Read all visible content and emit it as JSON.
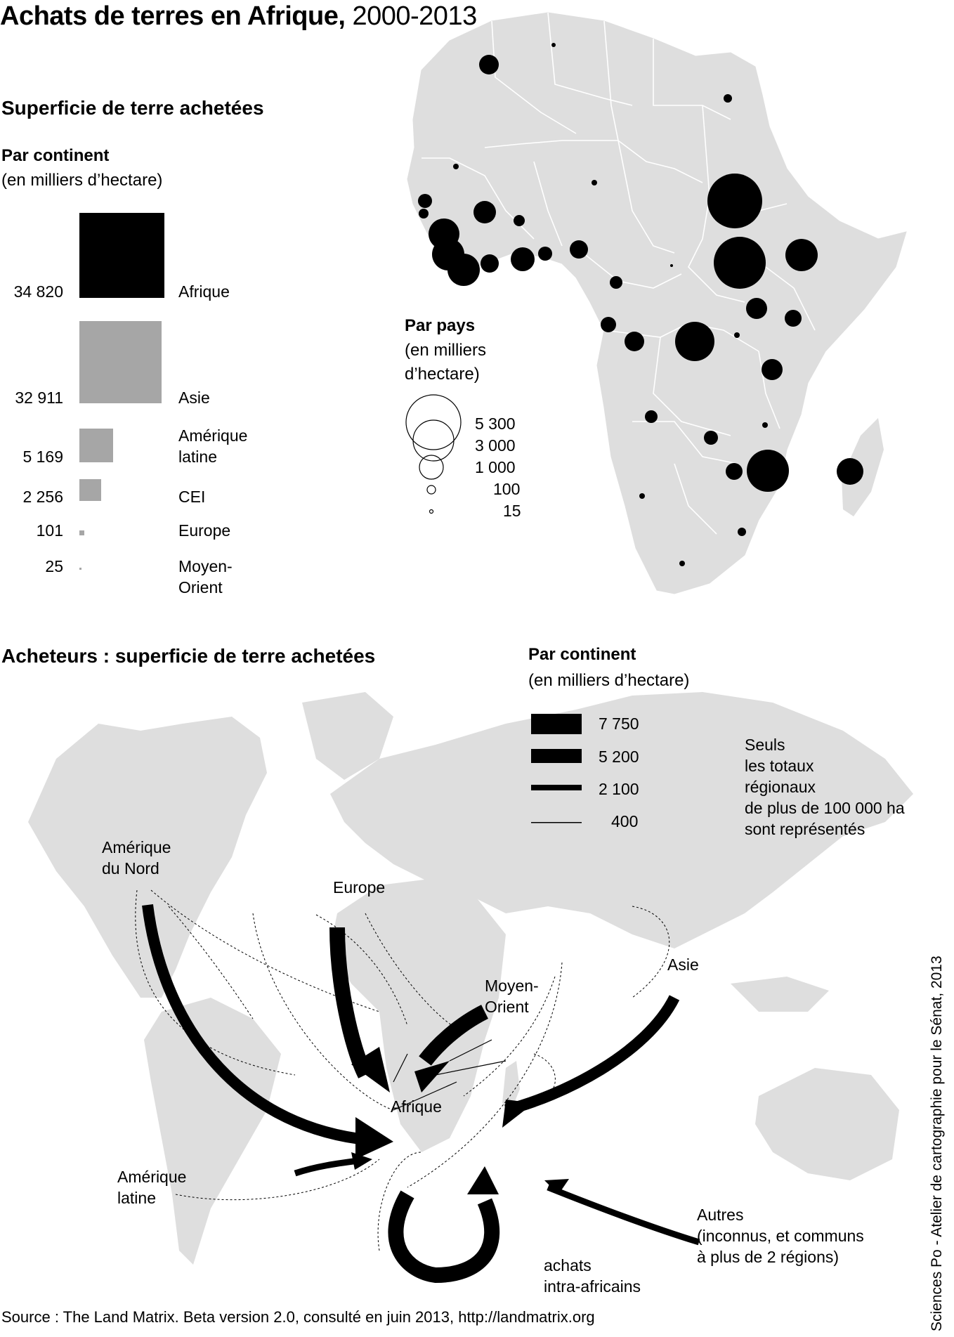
{
  "title": {
    "main": "Achats de terres en Afrique,",
    "years": "2000-2013"
  },
  "section1": {
    "heading": "Superficie de terre achetées",
    "by_continent": {
      "heading": "Par continent",
      "unit": "(en milliers d’hectare)"
    },
    "by_country": {
      "heading": "Par pays",
      "unit_line1": "(en milliers",
      "unit_line2": "d’hectare)"
    },
    "circle_legend": [
      "5 300",
      "3 000",
      "1 000",
      "100",
      "15"
    ]
  },
  "continent_squares": [
    {
      "value": "34 820",
      "label": "Afrique",
      "label2": "",
      "color": "#000000"
    },
    {
      "value": "32 911",
      "label": "Asie",
      "label2": "",
      "color": "#a6a6a6"
    },
    {
      "value": "5 169",
      "label": "Amérique",
      "label2": "latine",
      "color": "#a6a6a6"
    },
    {
      "value": "2 256",
      "label": "CEI",
      "label2": "",
      "color": "#a6a6a6"
    },
    {
      "value": "101",
      "label": "Europe",
      "label2": "",
      "color": "#a6a6a6"
    },
    {
      "value": "25",
      "label": "Moyen-",
      "label2": "Orient",
      "color": "#a6a6a6"
    }
  ],
  "section2": {
    "heading": "Acheteurs : superficie de terre achetées",
    "by_continent": {
      "heading": "Par continent",
      "unit": "(en milliers d’hectare)"
    },
    "flow_legend": [
      "7 750",
      "5 200",
      "2 100",
      "400"
    ],
    "note": [
      "Seuls",
      "les totaux",
      "régionaux",
      "de plus de 100 000 ha",
      "sont représentés"
    ]
  },
  "flow_labels": {
    "north_america": [
      "Amérique",
      "du Nord"
    ],
    "europe": "Europe",
    "middle_east": [
      "Moyen-",
      "Orient"
    ],
    "asia": "Asie",
    "africa": "Afrique",
    "latin_america": [
      "Amérique",
      "latine"
    ],
    "others": [
      "Autres",
      "(inconnus, et communs",
      "à plus de 2 régions)"
    ],
    "intra": [
      "achats",
      "intra-africains"
    ]
  },
  "source": "Source : The Land Matrix. Beta version 2.0, consulté en juin 2013, http://landmatrix.org",
  "credit": "Sciences Po - Atelier de cartographie pour le Sénat, 2013",
  "colors": {
    "land": "#dedede",
    "border": "#ffffff",
    "asia_square": "#a6a6a6",
    "flow": "#000000"
  }
}
